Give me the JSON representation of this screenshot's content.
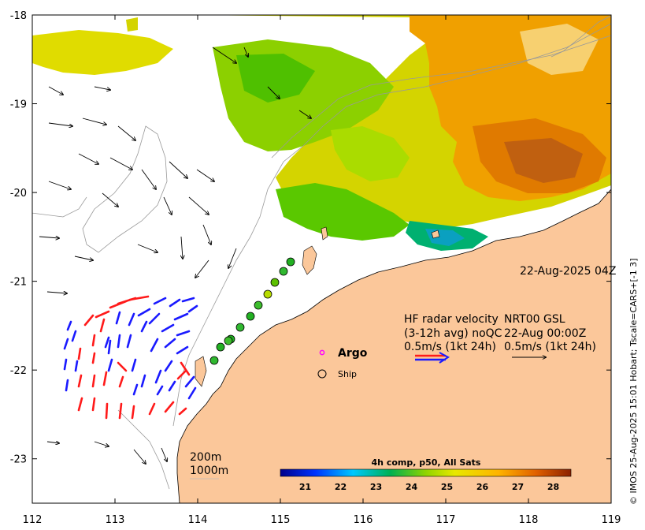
{
  "map": {
    "timestamp": "22-Aug-2025 04Z",
    "credit": "© IMOS 25-Aug-2025 15:01 Hobart; Tscale=CARS+[-1 3]",
    "lon_range": [
      112,
      119
    ],
    "lat_range": [
      -23.5,
      -18
    ],
    "lon_ticks": [
      "112",
      "113",
      "114",
      "115",
      "116",
      "117",
      "118",
      "119"
    ],
    "lat_ticks": [
      "-18",
      "-19",
      "-20",
      "-21",
      "-22",
      "-23"
    ],
    "colors": {
      "land": "#fbc79a",
      "frame": "#000000",
      "radar_a": "#1a1aff",
      "radar_b": "#ff1a1a"
    }
  },
  "radar_legend": {
    "title": "HF radar velocity",
    "line2": "(3-12h avg) noQC",
    "line3": "0.5m/s (1kt 24h)"
  },
  "model_legend": {
    "title": "NRT00 GSL",
    "line2": "22-Aug 00:00Z",
    "line3": "0.5m/s (1kt 24h)"
  },
  "platforms": {
    "argo_label": "Argo",
    "ship_label": "Ship"
  },
  "depth_contours": {
    "shallow": "200m",
    "deep": "1000m"
  },
  "colorbar": {
    "title": "4h comp, p50, All Sats",
    "ticks": [
      "21",
      "22",
      "23",
      "24",
      "25",
      "26",
      "27",
      "28"
    ],
    "range": [
      20.3,
      28.5
    ]
  }
}
